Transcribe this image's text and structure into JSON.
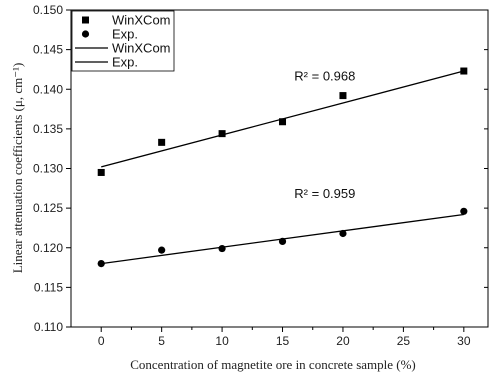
{
  "chart_data": {
    "type": "scatter",
    "xlabel": "Concentration of magnetite ore in concrete sample  (%)",
    "ylabel": "Linear attenuation coefficients (μ, cm⁻¹)",
    "xlim": [
      -2.5,
      32
    ],
    "ylim": [
      0.11,
      0.15
    ],
    "x_ticks": [
      0,
      5,
      10,
      15,
      20,
      25,
      30
    ],
    "y_ticks": [
      0.11,
      0.115,
      0.12,
      0.125,
      0.13,
      0.135,
      0.14,
      0.145,
      0.15
    ],
    "series": [
      {
        "name": "WinXCom",
        "marker": "square",
        "x": [
          0,
          5,
          10,
          15,
          20,
          30
        ],
        "y": [
          0.1295,
          0.1333,
          0.1344,
          0.1359,
          0.1392,
          0.1423
        ]
      },
      {
        "name": "Exp.",
        "marker": "circle",
        "x": [
          0,
          5,
          10,
          15,
          20,
          30
        ],
        "y": [
          0.118,
          0.1197,
          0.1199,
          0.1208,
          0.1218,
          0.1246
        ]
      }
    ],
    "fit_lines": [
      {
        "name": "WinXCom",
        "x": [
          0,
          30
        ],
        "y": [
          0.1302,
          0.1423
        ]
      },
      {
        "name": "Exp.",
        "x": [
          0,
          30
        ],
        "y": [
          0.118,
          0.1242
        ]
      }
    ],
    "annotations": [
      {
        "text": "R² = 0.968",
        "x": 18.5,
        "y": 0.1411
      },
      {
        "text": "R² = 0.959",
        "x": 18.5,
        "y": 0.1263
      }
    ],
    "legend": {
      "placement": "top-left",
      "entries": [
        "WinXCom",
        "Exp.",
        "WinXCom",
        "Exp."
      ]
    },
    "grid": false
  }
}
